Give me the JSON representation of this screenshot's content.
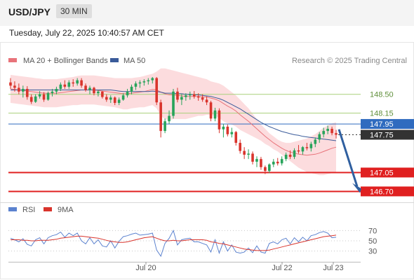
{
  "header": {
    "symbol": "USD/JPY",
    "interval": "30 MIN"
  },
  "timestamp": "Tuesday, July 22, 2025 10:40:57 AM CET",
  "legend": {
    "ma20": "MA 20 + Bollinger Bands",
    "ma50": "MA 50",
    "credit": "Research © 2025 Trading Central",
    "rsi": "RSI",
    "ma9": "9MA"
  },
  "colors": {
    "candle_up": "#27a35a",
    "candle_down": "#d9342c",
    "ma20": "#e8737a",
    "ma50": "#3a5b9a",
    "band": "#fbd0d3",
    "support": "#e02020",
    "pivot": "#2f6bbf",
    "resistance": "#a8d07a",
    "last_price": "#333333",
    "arrow": "#2f5f9f"
  },
  "chart_data": [
    {
      "type": "candlestick",
      "x_labels": [
        "Jul 20",
        "Jul 22",
        "Jul 23"
      ],
      "ylim": [
        146.55,
        148.95
      ],
      "ohlc": [
        [
          148.72,
          148.8,
          148.6,
          148.66
        ],
        [
          148.66,
          148.74,
          148.55,
          148.62
        ],
        [
          148.62,
          148.7,
          148.5,
          148.55
        ],
        [
          148.55,
          148.66,
          148.44,
          148.6
        ],
        [
          148.6,
          148.65,
          148.4,
          148.45
        ],
        [
          148.45,
          148.5,
          148.32,
          148.36
        ],
        [
          148.36,
          148.5,
          148.34,
          148.46
        ],
        [
          148.46,
          148.56,
          148.42,
          148.5
        ],
        [
          148.5,
          148.54,
          148.36,
          148.4
        ],
        [
          148.4,
          148.55,
          148.38,
          148.52
        ],
        [
          148.52,
          148.6,
          148.46,
          148.55
        ],
        [
          148.55,
          148.64,
          148.5,
          148.6
        ],
        [
          148.6,
          148.72,
          148.56,
          148.68
        ],
        [
          148.68,
          148.76,
          148.6,
          148.64
        ],
        [
          148.64,
          148.76,
          148.6,
          148.72
        ],
        [
          148.72,
          148.78,
          148.64,
          148.7
        ],
        [
          148.7,
          148.8,
          148.66,
          148.76
        ],
        [
          148.76,
          148.8,
          148.62,
          148.66
        ],
        [
          148.66,
          148.7,
          148.55,
          148.58
        ],
        [
          148.58,
          148.66,
          148.5,
          148.62
        ],
        [
          148.62,
          148.64,
          148.48,
          148.52
        ],
        [
          148.52,
          148.58,
          148.46,
          148.55
        ],
        [
          148.55,
          148.56,
          148.42,
          148.45
        ],
        [
          148.45,
          148.5,
          148.36,
          148.4
        ],
        [
          148.4,
          148.48,
          148.34,
          148.44
        ],
        [
          148.44,
          148.46,
          148.3,
          148.34
        ],
        [
          148.34,
          148.44,
          148.3,
          148.4
        ],
        [
          148.4,
          148.52,
          148.38,
          148.48
        ],
        [
          148.48,
          148.6,
          148.44,
          148.55
        ],
        [
          148.55,
          148.68,
          148.5,
          148.64
        ],
        [
          148.64,
          148.74,
          148.58,
          148.7
        ],
        [
          148.7,
          148.76,
          148.62,
          148.72
        ],
        [
          148.72,
          148.78,
          148.66,
          148.74
        ],
        [
          148.74,
          148.8,
          148.68,
          148.76
        ],
        [
          148.76,
          148.82,
          148.7,
          148.8
        ],
        [
          148.8,
          148.82,
          148.3,
          148.35
        ],
        [
          148.35,
          148.4,
          147.7,
          147.82
        ],
        [
          147.82,
          148.05,
          147.78,
          148.0
        ],
        [
          148.0,
          148.2,
          147.95,
          148.1
        ],
        [
          148.1,
          148.6,
          148.05,
          148.55
        ],
        [
          148.55,
          148.62,
          148.35,
          148.4
        ],
        [
          148.4,
          148.5,
          148.3,
          148.45
        ],
        [
          148.45,
          148.52,
          148.38,
          148.48
        ],
        [
          148.48,
          148.55,
          148.4,
          148.5
        ],
        [
          148.5,
          148.56,
          148.42,
          148.46
        ],
        [
          148.46,
          148.52,
          148.38,
          148.44
        ],
        [
          148.44,
          148.5,
          148.36,
          148.4
        ],
        [
          148.4,
          148.46,
          148.3,
          148.35
        ],
        [
          148.35,
          148.38,
          148.0,
          148.05
        ],
        [
          148.05,
          148.25,
          148.0,
          148.2
        ],
        [
          148.2,
          148.24,
          147.78,
          147.85
        ],
        [
          147.85,
          147.95,
          147.7,
          147.9
        ],
        [
          147.9,
          147.94,
          147.72,
          147.76
        ],
        [
          147.76,
          147.88,
          147.7,
          147.8
        ],
        [
          147.8,
          147.82,
          147.55,
          147.6
        ],
        [
          147.6,
          147.66,
          147.4,
          147.45
        ],
        [
          147.45,
          147.52,
          147.3,
          147.38
        ],
        [
          147.38,
          147.48,
          147.3,
          147.4
        ],
        [
          147.4,
          147.44,
          147.2,
          147.25
        ],
        [
          147.25,
          147.35,
          147.15,
          147.3
        ],
        [
          147.3,
          147.34,
          147.1,
          147.15
        ],
        [
          147.15,
          147.18,
          147.02,
          147.08
        ],
        [
          147.08,
          147.22,
          147.04,
          147.2
        ],
        [
          147.2,
          147.3,
          147.15,
          147.25
        ],
        [
          147.25,
          147.32,
          147.18,
          147.22
        ],
        [
          147.22,
          147.35,
          147.18,
          147.3
        ],
        [
          147.3,
          147.42,
          147.26,
          147.38
        ],
        [
          147.38,
          147.46,
          147.3,
          147.34
        ],
        [
          147.34,
          147.5,
          147.3,
          147.46
        ],
        [
          147.46,
          147.56,
          147.4,
          147.44
        ],
        [
          147.44,
          147.54,
          147.38,
          147.52
        ],
        [
          147.52,
          147.6,
          147.46,
          147.5
        ],
        [
          147.5,
          147.62,
          147.44,
          147.58
        ],
        [
          147.58,
          147.7,
          147.52,
          147.66
        ],
        [
          147.66,
          147.8,
          147.6,
          147.76
        ],
        [
          147.76,
          147.88,
          147.7,
          147.82
        ],
        [
          147.82,
          147.92,
          147.76,
          147.86
        ],
        [
          147.86,
          147.9,
          147.74,
          147.78
        ],
        [
          147.78,
          147.84,
          147.68,
          147.75
        ]
      ],
      "ma20": [
        148.6,
        148.59,
        148.58,
        148.57,
        148.56,
        148.55,
        148.54,
        148.53,
        148.52,
        148.52,
        148.52,
        148.52,
        148.53,
        148.54,
        148.55,
        148.56,
        148.57,
        148.58,
        148.58,
        148.58,
        148.58,
        148.57,
        148.56,
        148.55,
        148.54,
        148.53,
        148.52,
        148.51,
        148.51,
        148.52,
        148.53,
        148.54,
        148.55,
        148.57,
        148.59,
        148.58,
        148.54,
        148.51,
        148.49,
        148.49,
        148.48,
        148.47,
        148.46,
        148.46,
        148.46,
        148.46,
        148.45,
        148.45,
        148.43,
        148.41,
        148.38,
        148.33,
        148.28,
        148.24,
        148.19,
        148.12,
        148.06,
        148.0,
        147.93,
        147.86,
        147.79,
        147.72,
        147.66,
        147.6,
        147.55,
        147.5,
        147.46,
        147.43,
        147.41,
        147.39,
        147.38,
        147.37,
        147.38,
        147.39,
        147.41,
        147.44,
        147.47,
        147.5,
        147.52
      ],
      "bands": {
        "upper": [
          148.86,
          148.85,
          148.84,
          148.83,
          148.82,
          148.81,
          148.8,
          148.79,
          148.78,
          148.78,
          148.78,
          148.78,
          148.79,
          148.8,
          148.81,
          148.82,
          148.84,
          148.85,
          148.85,
          148.85,
          148.85,
          148.84,
          148.83,
          148.82,
          148.81,
          148.8,
          148.8,
          148.8,
          148.8,
          148.8,
          148.81,
          148.82,
          148.84,
          148.86,
          148.88,
          148.92,
          148.98,
          148.98,
          148.96,
          148.94,
          148.92,
          148.9,
          148.88,
          148.86,
          148.84,
          148.82,
          148.8,
          148.78,
          148.74,
          148.72,
          148.7,
          148.66,
          148.6,
          148.54,
          148.48,
          148.4,
          148.32,
          148.24,
          148.14,
          148.04,
          147.94,
          147.86,
          147.78,
          147.72,
          147.66,
          147.62,
          147.6,
          147.6,
          147.62,
          147.64,
          147.66,
          147.68,
          147.72,
          147.76,
          147.82,
          147.88,
          147.92,
          147.96,
          147.98
        ],
        "lower": [
          148.34,
          148.33,
          148.32,
          148.31,
          148.3,
          148.29,
          148.28,
          148.27,
          148.26,
          148.26,
          148.26,
          148.26,
          148.27,
          148.28,
          148.29,
          148.3,
          148.3,
          148.31,
          148.31,
          148.31,
          148.31,
          148.3,
          148.29,
          148.28,
          148.27,
          148.26,
          148.24,
          148.22,
          148.22,
          148.24,
          148.25,
          148.26,
          148.26,
          148.28,
          148.3,
          148.24,
          148.1,
          148.04,
          148.02,
          148.04,
          148.04,
          148.04,
          148.04,
          148.06,
          148.08,
          148.1,
          148.1,
          148.12,
          148.12,
          148.1,
          148.06,
          148.0,
          147.96,
          147.94,
          147.9,
          147.84,
          147.8,
          147.76,
          147.72,
          147.68,
          147.64,
          147.58,
          147.54,
          147.48,
          147.44,
          147.38,
          147.32,
          147.26,
          147.2,
          147.14,
          147.1,
          147.06,
          147.04,
          147.02,
          147.0,
          147.0,
          147.02,
          147.04,
          147.06
        ]
      },
      "ma50": [
        148.58,
        148.58,
        148.58,
        148.58,
        148.58,
        148.58,
        148.58,
        148.58,
        148.58,
        148.58,
        148.58,
        148.58,
        148.58,
        148.58,
        148.58,
        148.58,
        148.58,
        148.58,
        148.58,
        148.58,
        148.58,
        148.58,
        148.58,
        148.58,
        148.58,
        148.57,
        148.56,
        148.55,
        148.55,
        148.55,
        148.55,
        148.55,
        148.55,
        148.55,
        148.56,
        148.55,
        148.54,
        148.52,
        148.52,
        148.52,
        148.51,
        148.51,
        148.5,
        148.5,
        148.49,
        148.49,
        148.48,
        148.47,
        148.46,
        148.44,
        148.42,
        148.39,
        148.35,
        148.31,
        148.27,
        148.23,
        148.18,
        148.13,
        148.08,
        148.03,
        147.98,
        147.94,
        147.9,
        147.87,
        147.84,
        147.81,
        147.79,
        147.77,
        147.75,
        147.74,
        147.72,
        147.71,
        147.7,
        147.69,
        147.68,
        147.67,
        147.66,
        147.65,
        147.64
      ],
      "levels": [
        {
          "label": "148.50",
          "value": 148.5,
          "kind": "resistance"
        },
        {
          "label": "148.15",
          "value": 148.15,
          "kind": "resistance"
        },
        {
          "label": "147.95",
          "value": 147.95,
          "kind": "pivot"
        },
        {
          "label": "147.75",
          "value": 147.75,
          "kind": "last"
        },
        {
          "label": "147.05",
          "value": 147.05,
          "kind": "support"
        },
        {
          "label": "146.70",
          "value": 146.7,
          "kind": "support"
        }
      ],
      "forecast_arrow": {
        "from": 147.85,
        "to": 146.7
      }
    },
    {
      "type": "line",
      "ylim": [
        20,
        80
      ],
      "y_ticks": [
        "70",
        "50",
        "30"
      ],
      "series": [
        {
          "name": "RSI",
          "values": [
            55,
            52,
            48,
            54,
            43,
            40,
            52,
            56,
            44,
            56,
            60,
            62,
            67,
            57,
            65,
            60,
            65,
            50,
            44,
            56,
            44,
            52,
            40,
            38,
            50,
            36,
            49,
            58,
            60,
            63,
            65,
            61,
            62,
            63,
            65,
            32,
            20,
            45,
            55,
            70,
            42,
            52,
            54,
            55,
            48,
            48,
            45,
            42,
            28,
            52,
            26,
            48,
            30,
            42,
            28,
            26,
            28,
            36,
            27,
            40,
            28,
            26,
            45,
            48,
            44,
            52,
            55,
            44,
            56,
            48,
            57,
            50,
            60,
            62,
            66,
            68,
            65,
            56,
            57
          ]
        },
        {
          "name": "9MA",
          "values": [
            52,
            52,
            52,
            51,
            51,
            50,
            50,
            51,
            51,
            51,
            52,
            53,
            55,
            56,
            57,
            58,
            59,
            59,
            58,
            57,
            56,
            55,
            53,
            51,
            49,
            48,
            47,
            47,
            48,
            50,
            52,
            54,
            56,
            57,
            58,
            55,
            52,
            50,
            50,
            51,
            50,
            50,
            51,
            52,
            52,
            52,
            52,
            51,
            48,
            47,
            45,
            44,
            42,
            40,
            38,
            36,
            34,
            33,
            32,
            31,
            31,
            31,
            32,
            34,
            36,
            38,
            40,
            42,
            44,
            46,
            48,
            50,
            52,
            54,
            56,
            58,
            59,
            60,
            61
          ]
        }
      ]
    }
  ]
}
